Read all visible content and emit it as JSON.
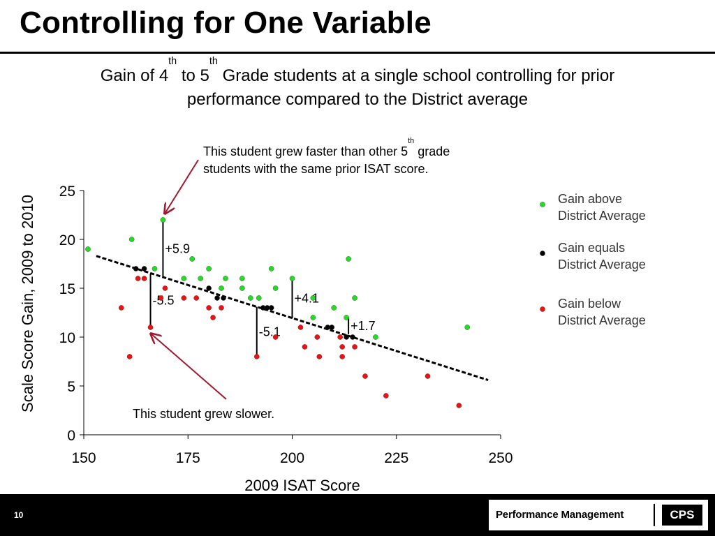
{
  "slide": {
    "title": "Controlling for One Variable",
    "subtitle_line1": {
      "a": "Gain of 4",
      "sup1": "th",
      "b": " to 5",
      "sup2": "th",
      "c": " Grade students at a single school controlling for prior"
    },
    "subtitle_line2": "performance compared to the District average",
    "callout_top": {
      "a": "This student grew faster than other 5",
      "sup": "th",
      "b": " grade",
      "line2": "students with the same prior ISAT score."
    },
    "callout_bottom": "This student grew slower.",
    "footer": {
      "slide_number": "10",
      "brand": "Performance Management",
      "logo": "CPS"
    }
  },
  "colors": {
    "above": "#22dd22",
    "equal": "#000000",
    "below": "#ee1111",
    "arrow": "#a01830",
    "trend": "#000000"
  },
  "chart_data": {
    "type": "scatter",
    "xlabel": "2009 ISAT Score",
    "ylabel": "Scale Score Gain, 2009 to 2010",
    "xlim": [
      150,
      250
    ],
    "ylim": [
      0,
      25
    ],
    "x_ticks": [
      "150",
      "175",
      "200",
      "225",
      "250"
    ],
    "y_ticks": [
      "0",
      "5",
      "10",
      "15",
      "20",
      "25"
    ],
    "grid": false,
    "legend_position": "right",
    "trendline": {
      "x": [
        153,
        247
      ],
      "y": [
        18.3,
        5.6
      ],
      "style": "dashed"
    },
    "series": [
      {
        "key": "above",
        "name": "Gain above District Average",
        "legend_line1": "Gain above",
        "legend_line2": "District Average",
        "points": [
          [
            151,
            19
          ],
          [
            161.5,
            20
          ],
          [
            167,
            17
          ],
          [
            169,
            22
          ],
          [
            174,
            16
          ],
          [
            176,
            18
          ],
          [
            178,
            16
          ],
          [
            180,
            17
          ],
          [
            183,
            15
          ],
          [
            184,
            16
          ],
          [
            188,
            15
          ],
          [
            188,
            16
          ],
          [
            190,
            14
          ],
          [
            192,
            14
          ],
          [
            195,
            17
          ],
          [
            196,
            15
          ],
          [
            200,
            16
          ],
          [
            205,
            14
          ],
          [
            205,
            12
          ],
          [
            210,
            13
          ],
          [
            213,
            12
          ],
          [
            213.5,
            18
          ],
          [
            215,
            14
          ],
          [
            220,
            10
          ],
          [
            242,
            11
          ]
        ]
      },
      {
        "key": "equal",
        "name": "Gain equals District Average",
        "legend_line1": "Gain equals",
        "legend_line2": "District Average",
        "points": [
          [
            162.5,
            17
          ],
          [
            164.5,
            17
          ],
          [
            180,
            15
          ],
          [
            182,
            14
          ],
          [
            183.5,
            14
          ],
          [
            193,
            13
          ],
          [
            194,
            13
          ],
          [
            195,
            13
          ],
          [
            208.5,
            11
          ],
          [
            209.5,
            11
          ],
          [
            213,
            10
          ],
          [
            214.5,
            10
          ]
        ]
      },
      {
        "key": "below",
        "name": "Gain below District Average",
        "legend_line1": "Gain below",
        "legend_line2": "District Average",
        "points": [
          [
            159,
            13
          ],
          [
            161,
            8
          ],
          [
            163,
            16
          ],
          [
            164.5,
            16
          ],
          [
            166,
            11
          ],
          [
            168.5,
            14
          ],
          [
            169.5,
            15
          ],
          [
            174,
            14
          ],
          [
            177,
            14
          ],
          [
            180,
            13
          ],
          [
            181,
            12
          ],
          [
            183,
            13
          ],
          [
            191.5,
            8
          ],
          [
            196,
            10
          ],
          [
            202,
            11
          ],
          [
            203,
            9
          ],
          [
            206,
            10
          ],
          [
            206.5,
            8
          ],
          [
            211.5,
            10
          ],
          [
            212,
            8
          ],
          [
            212,
            9
          ],
          [
            215,
            9
          ],
          [
            217.5,
            6
          ],
          [
            222.5,
            4
          ],
          [
            232.5,
            6
          ],
          [
            240,
            3
          ]
        ]
      }
    ],
    "annotations": [
      {
        "label": "+5.9",
        "x": 169,
        "y_from": 16.1,
        "y_to": 22,
        "label_side": "right"
      },
      {
        "label": "-5.5",
        "x": 166,
        "y_from": 16.5,
        "y_to": 11,
        "label_side": "right"
      },
      {
        "label": "+4.1",
        "x": 200,
        "y_from": 11.9,
        "y_to": 16,
        "label_side": "right"
      },
      {
        "label": "-5.1",
        "x": 191.5,
        "y_from": 13.1,
        "y_to": 8,
        "label_side": "right"
      },
      {
        "label": "+1.7",
        "x": 213.5,
        "y_from": 10.3,
        "y_to": 12,
        "label_side": "right"
      }
    ]
  }
}
